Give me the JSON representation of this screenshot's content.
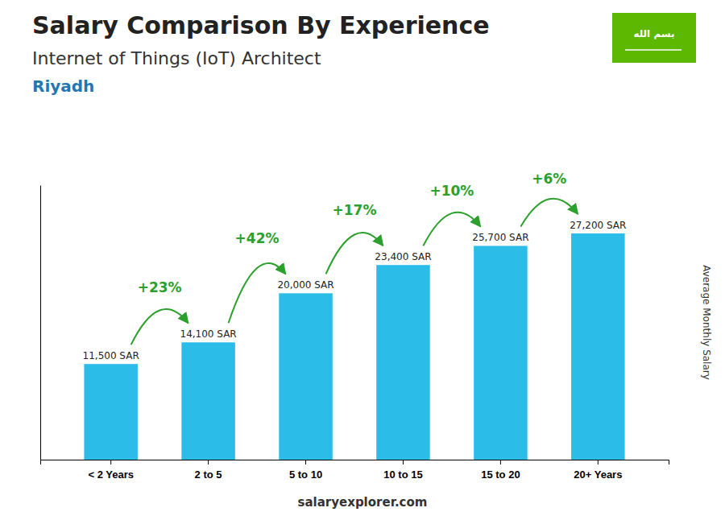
{
  "chart_data": {
    "type": "bar",
    "title": "Salary Comparison By Experience",
    "subtitle": "Internet of Things (IoT) Architect",
    "city": "Riyadh",
    "ylabel": "Average Monthly Salary",
    "categories": [
      "< 2 Years",
      "2 to 5",
      "5 to 10",
      "10 to 15",
      "15 to 20",
      "20+ Years"
    ],
    "values": [
      11500,
      14100,
      20000,
      23400,
      25700,
      27200
    ],
    "value_labels": [
      "11,500 SAR",
      "14,100 SAR",
      "20,000 SAR",
      "23,400 SAR",
      "25,700 SAR",
      "27,200 SAR"
    ],
    "data_labels": true,
    "annotations": [
      "+23%",
      "+42%",
      "+17%",
      "+10%",
      "+6%"
    ],
    "color": "#2bbde8",
    "ylim": [
      0,
      33000
    ],
    "yticks": [],
    "tick_labels": "x",
    "footer": "salaryexplorer.com",
    "flag_text": "بسم الله",
    "flag_color": "#5cb800"
  }
}
